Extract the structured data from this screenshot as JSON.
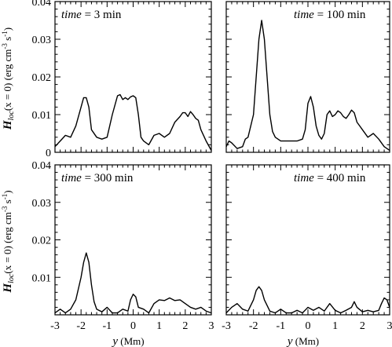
{
  "chart_data": [
    {
      "type": "line",
      "annotation": {
        "var": "time",
        "rest": " = 3 min"
      },
      "xlim": [
        -3,
        3
      ],
      "ylim": [
        0,
        0.04
      ],
      "x": [
        -3.0,
        -2.8,
        -2.6,
        -2.4,
        -2.2,
        -2.0,
        -1.9,
        -1.8,
        -1.7,
        -1.6,
        -1.4,
        -1.2,
        -1.0,
        -0.8,
        -0.6,
        -0.5,
        -0.4,
        -0.3,
        -0.2,
        -0.1,
        0.0,
        0.1,
        0.2,
        0.3,
        0.4,
        0.6,
        0.8,
        1.0,
        1.2,
        1.4,
        1.6,
        1.8,
        1.9,
        2.0,
        2.1,
        2.2,
        2.3,
        2.4,
        2.5,
        2.6,
        2.8,
        3.0
      ],
      "values": [
        0.0015,
        0.003,
        0.0045,
        0.004,
        0.007,
        0.012,
        0.0145,
        0.0145,
        0.012,
        0.006,
        0.004,
        0.0035,
        0.004,
        0.01,
        0.015,
        0.0153,
        0.014,
        0.0145,
        0.014,
        0.0147,
        0.015,
        0.0145,
        0.01,
        0.004,
        0.003,
        0.002,
        0.0045,
        0.005,
        0.004,
        0.005,
        0.008,
        0.0095,
        0.0105,
        0.0105,
        0.0095,
        0.0108,
        0.01,
        0.009,
        0.0085,
        0.006,
        0.003,
        0.0005
      ]
    },
    {
      "type": "line",
      "annotation": {
        "var": "time",
        "rest": " = 100 min"
      },
      "xlim": [
        -3,
        3
      ],
      "ylim": [
        0,
        0.04
      ],
      "x": [
        -3.0,
        -2.9,
        -2.8,
        -2.6,
        -2.4,
        -2.3,
        -2.2,
        -2.0,
        -1.9,
        -1.8,
        -1.7,
        -1.6,
        -1.5,
        -1.4,
        -1.3,
        -1.2,
        -1.0,
        -0.8,
        -0.6,
        -0.4,
        -0.2,
        -0.1,
        0.0,
        0.1,
        0.2,
        0.3,
        0.4,
        0.5,
        0.6,
        0.7,
        0.8,
        0.9,
        1.0,
        1.1,
        1.2,
        1.3,
        1.4,
        1.5,
        1.6,
        1.7,
        1.8,
        1.9,
        2.0,
        2.2,
        2.4,
        2.6,
        2.8,
        3.0
      ],
      "values": [
        0.0015,
        0.003,
        0.0025,
        0.001,
        0.0015,
        0.0035,
        0.004,
        0.01,
        0.02,
        0.03,
        0.035,
        0.03,
        0.02,
        0.01,
        0.0055,
        0.004,
        0.003,
        0.003,
        0.003,
        0.003,
        0.0035,
        0.006,
        0.013,
        0.0148,
        0.012,
        0.007,
        0.0045,
        0.0035,
        0.005,
        0.01,
        0.011,
        0.0095,
        0.01,
        0.011,
        0.0105,
        0.0095,
        0.009,
        0.01,
        0.0112,
        0.0105,
        0.008,
        0.007,
        0.006,
        0.004,
        0.005,
        0.0035,
        0.0015,
        0.0005
      ]
    },
    {
      "type": "line",
      "annotation": {
        "var": "time",
        "rest": " = 300 min"
      },
      "xlim": [
        -3,
        3
      ],
      "ylim": [
        0,
        0.04
      ],
      "x": [
        -3.0,
        -2.8,
        -2.6,
        -2.4,
        -2.2,
        -2.0,
        -1.9,
        -1.8,
        -1.7,
        -1.6,
        -1.5,
        -1.4,
        -1.2,
        -1.0,
        -0.8,
        -0.6,
        -0.4,
        -0.2,
        -0.1,
        0.0,
        0.1,
        0.2,
        0.4,
        0.6,
        0.8,
        1.0,
        1.2,
        1.4,
        1.6,
        1.8,
        2.0,
        2.2,
        2.4,
        2.6,
        2.8,
        3.0
      ],
      "values": [
        0.0005,
        0.0015,
        0.0005,
        0.0015,
        0.004,
        0.01,
        0.014,
        0.0165,
        0.014,
        0.008,
        0.0035,
        0.0015,
        0.0008,
        0.002,
        0.0005,
        0.0005,
        0.0015,
        0.001,
        0.004,
        0.0055,
        0.0048,
        0.002,
        0.0015,
        0.0005,
        0.003,
        0.004,
        0.0038,
        0.0045,
        0.0038,
        0.004,
        0.003,
        0.002,
        0.0015,
        0.002,
        0.001,
        0.0005
      ]
    },
    {
      "type": "line",
      "annotation": {
        "var": "time",
        "rest": " = 400 min"
      },
      "xlim": [
        -3,
        3
      ],
      "ylim": [
        0,
        0.04
      ],
      "x": [
        -3.0,
        -2.8,
        -2.6,
        -2.4,
        -2.2,
        -2.0,
        -1.9,
        -1.8,
        -1.7,
        -1.6,
        -1.4,
        -1.2,
        -1.0,
        -0.8,
        -0.6,
        -0.4,
        -0.2,
        0.0,
        0.2,
        0.4,
        0.6,
        0.8,
        1.0,
        1.2,
        1.4,
        1.6,
        1.7,
        1.8,
        2.0,
        2.2,
        2.4,
        2.6,
        2.7,
        2.8,
        2.9,
        3.0
      ],
      "values": [
        0.0005,
        0.002,
        0.003,
        0.0015,
        0.001,
        0.004,
        0.0065,
        0.0075,
        0.0065,
        0.004,
        0.001,
        0.0005,
        0.0015,
        0.0005,
        0.0005,
        0.0012,
        0.0005,
        0.002,
        0.0012,
        0.002,
        0.001,
        0.003,
        0.0012,
        0.0005,
        0.0012,
        0.002,
        0.0035,
        0.002,
        0.0008,
        0.0012,
        0.0008,
        0.0012,
        0.003,
        0.0045,
        0.004,
        0.002
      ]
    }
  ],
  "axes": {
    "x_ticks": [
      "-3",
      "-2",
      "-1",
      "0",
      "1",
      "2",
      "3"
    ],
    "y_ticks": [
      "0",
      "0.01",
      "0.02",
      "0.03",
      "0.04"
    ],
    "x_label": {
      "var": "y",
      "unit": " (Mm)"
    },
    "y_label": {
      "sym": "H",
      "sub": "loc",
      "arg": "(x = 0) (erg cm",
      "exp1": "-3",
      "mid": " s",
      "exp2": "-1",
      "end": ")"
    }
  }
}
